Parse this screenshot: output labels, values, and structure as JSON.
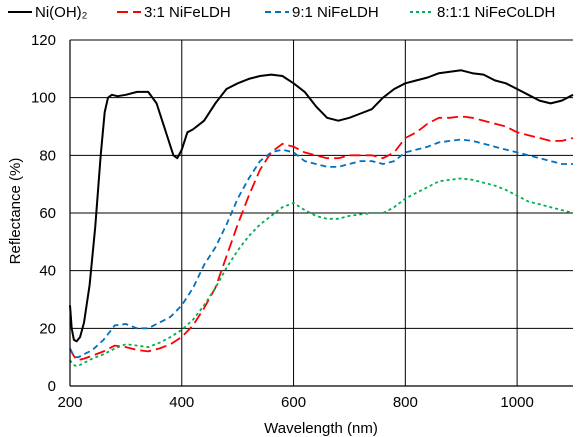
{
  "chart_data": {
    "type": "line",
    "title": "",
    "xlabel": "Wavelength (nm)",
    "ylabel": "Reflectance (%)",
    "xlim": [
      200,
      1100
    ],
    "ylim": [
      0,
      120
    ],
    "x_ticks": [
      "200",
      "400",
      "600",
      "800",
      "1000"
    ],
    "y_ticks": [
      "0",
      "20",
      "40",
      "60",
      "80",
      "100",
      "120"
    ],
    "grid": true,
    "legend_position": "top",
    "series": [
      {
        "name": "Ni(OH)₂",
        "color": "#000000",
        "dash": "solid",
        "x": [
          200,
          203,
          207,
          212,
          218,
          225,
          235,
          245,
          255,
          262,
          268,
          275,
          285,
          300,
          320,
          340,
          355,
          365,
          375,
          385,
          392,
          400,
          410,
          420,
          440,
          460,
          480,
          500,
          520,
          540,
          560,
          580,
          600,
          620,
          640,
          660,
          680,
          700,
          720,
          740,
          760,
          780,
          800,
          820,
          840,
          860,
          880,
          900,
          920,
          940,
          960,
          980,
          1000,
          1020,
          1040,
          1060,
          1080,
          1100
        ],
        "y": [
          28,
          20,
          16,
          15.5,
          17,
          22,
          35,
          55,
          80,
          95,
          100,
          101,
          100.5,
          101,
          102,
          102,
          98,
          92,
          86,
          80,
          79,
          82,
          88,
          89,
          92,
          98,
          103,
          105,
          106.5,
          107.5,
          108,
          107.5,
          105,
          102,
          97,
          93,
          92,
          93,
          94.5,
          96,
          100,
          103,
          105,
          106,
          107,
          108.5,
          109,
          109.5,
          108.5,
          108,
          106,
          105,
          103,
          101,
          99,
          98,
          99,
          101
        ]
      },
      {
        "name": "3:1 NiFeLDH",
        "color": "#ff0000",
        "dash": "long-dash",
        "x": [
          200,
          205,
          210,
          215,
          225,
          240,
          260,
          280,
          300,
          320,
          340,
          360,
          380,
          400,
          420,
          440,
          460,
          480,
          500,
          520,
          540,
          560,
          580,
          600,
          620,
          640,
          660,
          680,
          700,
          720,
          740,
          760,
          780,
          800,
          820,
          840,
          860,
          880,
          900,
          920,
          940,
          960,
          980,
          1000,
          1020,
          1040,
          1060,
          1080,
          1100
        ],
        "y": [
          13,
          11,
          9.5,
          9,
          9.5,
          10.5,
          12,
          14,
          13.5,
          12.5,
          12,
          13,
          14.5,
          17,
          21,
          27,
          34,
          45,
          56,
          66,
          75,
          81,
          84,
          83,
          81,
          80,
          79,
          79,
          80,
          80,
          80,
          79,
          81,
          86,
          88,
          91,
          93,
          93,
          93.5,
          93,
          92,
          91,
          90,
          88,
          87,
          86,
          85,
          85,
          86
        ]
      },
      {
        "name": "9:1 NiFeLDH",
        "color": "#0070c0",
        "dash": "dash",
        "x": [
          200,
          205,
          210,
          215,
          225,
          240,
          260,
          280,
          300,
          320,
          340,
          360,
          380,
          400,
          420,
          440,
          460,
          480,
          500,
          520,
          540,
          560,
          580,
          600,
          620,
          640,
          660,
          680,
          700,
          720,
          740,
          760,
          780,
          800,
          820,
          840,
          860,
          880,
          900,
          920,
          940,
          960,
          980,
          1000,
          1020,
          1040,
          1060,
          1080,
          1100
        ],
        "y": [
          13,
          11,
          10,
          10,
          11,
          12.5,
          16,
          21,
          21.5,
          20,
          20,
          22,
          24,
          28,
          34,
          42,
          48,
          56,
          65,
          72,
          78,
          81,
          82,
          81,
          78,
          77,
          76,
          76,
          77,
          78,
          78,
          77,
          78,
          81,
          82,
          83,
          84.5,
          85,
          85.5,
          85,
          84,
          83,
          82,
          81,
          80,
          79,
          78,
          77,
          77
        ]
      },
      {
        "name": "8:1:1 NiFeCoLDH",
        "color": "#00b050",
        "dash": "dot",
        "x": [
          200,
          205,
          210,
          215,
          225,
          240,
          260,
          280,
          300,
          320,
          340,
          360,
          380,
          400,
          420,
          440,
          460,
          480,
          500,
          520,
          540,
          560,
          580,
          600,
          620,
          640,
          660,
          680,
          700,
          720,
          740,
          760,
          780,
          800,
          820,
          840,
          860,
          880,
          900,
          920,
          940,
          960,
          980,
          1000,
          1020,
          1040,
          1060,
          1080,
          1100
        ],
        "y": [
          9,
          7.5,
          7,
          7,
          8,
          9.5,
          11,
          13,
          14.5,
          14,
          13.5,
          15,
          17,
          19.5,
          23,
          28,
          34,
          41,
          47,
          52,
          56,
          59,
          62,
          63.5,
          61,
          59,
          58,
          58,
          59,
          59.5,
          60,
          60,
          62,
          65,
          67,
          69,
          71,
          71.5,
          72,
          71.5,
          70.5,
          69.5,
          68,
          66,
          64,
          63,
          62,
          61,
          60
        ]
      }
    ]
  }
}
